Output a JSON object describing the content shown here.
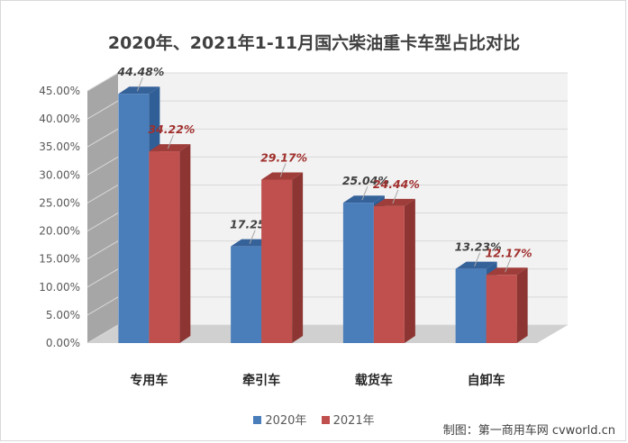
{
  "title": "2020年、2021年1-11月国六柴油重卡车型占比对比",
  "credit": "制图：第一商用车网 cvworld.cn",
  "colors": {
    "s2020_front": "#4a7ebb",
    "s2020_side": "#2f5f96",
    "s2020_top": "#36629a",
    "s2021_front": "#c0504d",
    "s2021_side": "#8c3532",
    "s2021_top": "#9f3d3a",
    "wall": "#f2f2f2",
    "wall_left": "#a6a6a6",
    "grid": "#d9d9d9",
    "label_2021": "#a0302d"
  },
  "chart_data": {
    "type": "bar",
    "title": "2020年、2021年1-11月国六柴油重卡车型占比对比",
    "categories": [
      "专用车",
      "牵引车",
      "载货车",
      "自卸车"
    ],
    "series": [
      {
        "name": "2020年",
        "values": [
          44.48,
          17.25,
          25.04,
          13.23
        ],
        "labels": [
          "44.48%",
          "17.25%",
          "25.04%",
          "13.23%"
        ]
      },
      {
        "name": "2021年",
        "values": [
          34.22,
          29.17,
          24.44,
          12.17
        ],
        "labels": [
          "34.22%",
          "29.17%",
          "24.44%",
          "12.17%"
        ]
      }
    ],
    "ylim": [
      0,
      45
    ],
    "yticks": [
      "0.00%",
      "5.00%",
      "10.00%",
      "15.00%",
      "20.00%",
      "25.00%",
      "30.00%",
      "35.00%",
      "40.00%",
      "45.00%"
    ],
    "grid": true,
    "three_d": true,
    "legend": "bottom"
  }
}
